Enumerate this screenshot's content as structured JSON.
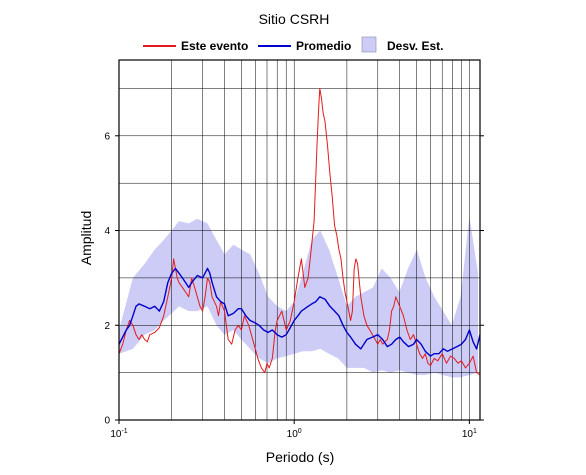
{
  "chart_data": {
    "type": "line",
    "title": "Sitio CSRH",
    "xlabel": "Periodo (s)",
    "ylabel": "Amplitud",
    "xscale": "log",
    "xlim": [
      0.1,
      11.5
    ],
    "ylim": [
      0,
      7.6
    ],
    "grid": true,
    "legend_placement": "top",
    "x_ticks": [
      {
        "value": 0.1,
        "base": "10",
        "exp": "-1"
      },
      {
        "value": 1,
        "base": "10",
        "exp": "0"
      },
      {
        "value": 10,
        "base": "10",
        "exp": "1"
      }
    ],
    "y_ticks": [
      {
        "value": 0,
        "label": "0"
      },
      {
        "value": 2,
        "label": "2"
      },
      {
        "value": 4,
        "label": "4"
      },
      {
        "value": 6,
        "label": "6"
      }
    ],
    "band": {
      "name": "Desv. Est.",
      "color": "#ccccf6",
      "x": [
        0.1,
        0.12,
        0.14,
        0.16,
        0.18,
        0.2,
        0.22,
        0.25,
        0.28,
        0.32,
        0.36,
        0.4,
        0.45,
        0.5,
        0.56,
        0.63,
        0.71,
        0.8,
        0.9,
        1.0,
        1.12,
        1.26,
        1.41,
        1.58,
        1.78,
        2.0,
        2.24,
        2.51,
        2.82,
        3.16,
        3.55,
        3.98,
        4.47,
        5.01,
        5.62,
        6.31,
        7.08,
        7.94,
        8.91,
        10.0,
        11.2
      ],
      "upper": [
        1.9,
        3.0,
        3.3,
        3.6,
        3.8,
        4.0,
        4.2,
        4.15,
        4.25,
        4.15,
        3.8,
        3.5,
        3.7,
        3.6,
        3.5,
        3.1,
        2.6,
        2.4,
        2.3,
        2.5,
        3.1,
        3.8,
        4.0,
        3.6,
        3.0,
        2.4,
        2.6,
        2.7,
        2.8,
        3.2,
        3.0,
        2.7,
        3.2,
        3.6,
        3.0,
        2.6,
        2.3,
        2.0,
        2.6,
        4.3,
        3.1
      ],
      "lower": [
        1.4,
        1.5,
        1.8,
        1.9,
        2.1,
        2.25,
        2.4,
        2.3,
        2.3,
        2.4,
        2.0,
        1.8,
        1.9,
        1.7,
        1.5,
        1.3,
        1.2,
        1.3,
        1.35,
        1.4,
        1.45,
        1.45,
        1.5,
        1.4,
        1.3,
        1.1,
        1.1,
        1.1,
        1.0,
        1.05,
        1.0,
        1.05,
        1.0,
        0.95,
        0.95,
        1.0,
        0.95,
        0.9,
        0.9,
        0.95,
        1.0
      ]
    },
    "series": [
      {
        "name": "Este evento",
        "color": "#e41a1c",
        "x": [
          0.1,
          0.105,
          0.11,
          0.115,
          0.12,
          0.125,
          0.13,
          0.135,
          0.14,
          0.145,
          0.15,
          0.16,
          0.17,
          0.18,
          0.19,
          0.2,
          0.205,
          0.21,
          0.215,
          0.22,
          0.23,
          0.24,
          0.25,
          0.26,
          0.27,
          0.28,
          0.29,
          0.3,
          0.31,
          0.32,
          0.33,
          0.34,
          0.35,
          0.36,
          0.37,
          0.38,
          0.4,
          0.42,
          0.44,
          0.46,
          0.48,
          0.5,
          0.52,
          0.55,
          0.58,
          0.6,
          0.62,
          0.65,
          0.68,
          0.7,
          0.72,
          0.75,
          0.78,
          0.8,
          0.85,
          0.9,
          0.95,
          1.0,
          1.05,
          1.1,
          1.15,
          1.2,
          1.25,
          1.3,
          1.35,
          1.38,
          1.4,
          1.43,
          1.46,
          1.5,
          1.55,
          1.6,
          1.65,
          1.7,
          1.75,
          1.8,
          1.85,
          1.9,
          1.95,
          2.0,
          2.05,
          2.1,
          2.15,
          2.2,
          2.25,
          2.3,
          2.4,
          2.5,
          2.6,
          2.7,
          2.8,
          2.9,
          3.0,
          3.1,
          3.2,
          3.3,
          3.4,
          3.5,
          3.6,
          3.7,
          3.8,
          3.9,
          4.0,
          4.2,
          4.4,
          4.6,
          4.8,
          5.0,
          5.2,
          5.4,
          5.6,
          5.8,
          6.0,
          6.3,
          6.6,
          7.0,
          7.4,
          7.8,
          8.2,
          8.6,
          9.0,
          9.5,
          10.0,
          10.5,
          11.0,
          11.5
        ],
        "y": [
          1.4,
          1.6,
          1.9,
          2.1,
          2.0,
          1.8,
          1.7,
          1.8,
          1.7,
          1.65,
          1.8,
          1.85,
          1.95,
          2.2,
          2.6,
          3.0,
          3.4,
          3.2,
          3.0,
          2.9,
          2.8,
          2.7,
          2.6,
          3.0,
          2.8,
          2.6,
          2.4,
          2.3,
          2.6,
          3.0,
          2.9,
          2.6,
          2.5,
          2.4,
          2.2,
          2.5,
          2.3,
          1.7,
          1.6,
          1.9,
          2.0,
          1.9,
          2.2,
          2.0,
          1.7,
          1.5,
          1.3,
          1.1,
          1.0,
          1.2,
          1.1,
          1.3,
          1.9,
          2.1,
          2.3,
          1.9,
          2.1,
          2.5,
          3.0,
          3.4,
          2.8,
          3.0,
          3.6,
          4.2,
          5.8,
          6.6,
          7.0,
          6.8,
          6.5,
          6.3,
          5.8,
          5.2,
          4.7,
          4.1,
          3.9,
          3.6,
          3.4,
          3.0,
          2.7,
          2.5,
          2.3,
          2.1,
          2.3,
          3.2,
          3.4,
          3.3,
          2.6,
          2.2,
          2.0,
          1.9,
          1.8,
          1.7,
          1.6,
          1.7,
          1.6,
          1.65,
          1.7,
          1.9,
          2.3,
          2.4,
          2.6,
          2.5,
          2.4,
          2.2,
          1.9,
          1.7,
          1.8,
          1.6,
          1.4,
          1.3,
          1.4,
          1.2,
          1.15,
          1.3,
          1.25,
          1.4,
          1.2,
          1.35,
          1.3,
          1.2,
          1.25,
          1.1,
          1.2,
          1.35,
          1.0,
          0.95
        ]
      },
      {
        "name": "Promedio",
        "color": "#0000cc",
        "x": [
          0.1,
          0.105,
          0.11,
          0.115,
          0.12,
          0.125,
          0.13,
          0.14,
          0.15,
          0.16,
          0.17,
          0.18,
          0.19,
          0.2,
          0.21,
          0.22,
          0.23,
          0.24,
          0.25,
          0.26,
          0.28,
          0.3,
          0.32,
          0.33,
          0.34,
          0.36,
          0.38,
          0.4,
          0.42,
          0.45,
          0.48,
          0.5,
          0.53,
          0.56,
          0.6,
          0.63,
          0.67,
          0.71,
          0.75,
          0.8,
          0.85,
          0.9,
          0.95,
          1.0,
          1.05,
          1.1,
          1.15,
          1.2,
          1.26,
          1.33,
          1.4,
          1.5,
          1.6,
          1.7,
          1.8,
          1.9,
          2.0,
          2.1,
          2.24,
          2.4,
          2.6,
          2.8,
          3.0,
          3.2,
          3.4,
          3.6,
          3.8,
          4.0,
          4.2,
          4.5,
          4.8,
          5.0,
          5.3,
          5.6,
          6.0,
          6.3,
          6.7,
          7.1,
          7.5,
          8.0,
          8.5,
          9.0,
          9.5,
          10.0,
          10.5,
          11.0,
          11.5
        ],
        "y": [
          1.6,
          1.75,
          1.9,
          2.0,
          2.2,
          2.4,
          2.45,
          2.4,
          2.35,
          2.4,
          2.3,
          2.5,
          2.9,
          3.1,
          3.2,
          3.1,
          3.0,
          2.9,
          2.8,
          2.9,
          3.05,
          3.0,
          3.2,
          3.1,
          2.9,
          2.6,
          2.5,
          2.45,
          2.2,
          2.25,
          2.35,
          2.35,
          2.2,
          2.1,
          2.05,
          2.0,
          1.9,
          1.85,
          1.9,
          1.8,
          1.75,
          1.8,
          1.95,
          2.1,
          2.2,
          2.3,
          2.35,
          2.4,
          2.45,
          2.5,
          2.6,
          2.55,
          2.4,
          2.3,
          2.2,
          2.0,
          1.85,
          1.75,
          1.6,
          1.5,
          1.7,
          1.75,
          1.8,
          1.7,
          1.55,
          1.6,
          1.7,
          1.75,
          1.65,
          1.55,
          1.6,
          1.7,
          1.6,
          1.45,
          1.35,
          1.4,
          1.4,
          1.5,
          1.45,
          1.5,
          1.55,
          1.6,
          1.7,
          1.9,
          1.65,
          1.5,
          1.8
        ]
      }
    ]
  }
}
